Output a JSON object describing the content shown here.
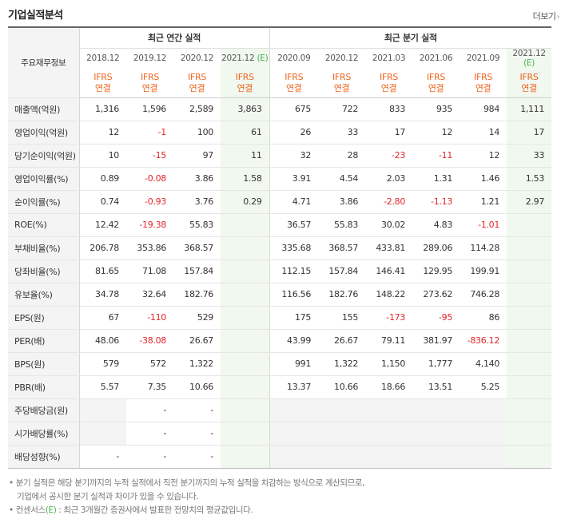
{
  "header": {
    "title": "기업실적분석",
    "more": "더보기",
    "more_arrow": "›"
  },
  "table": {
    "corner": "주요재무정보",
    "annual_group": "최근 연간 실적",
    "quarter_group": "최근 분기 실적",
    "periods": [
      {
        "label": "2018.12",
        "est": ""
      },
      {
        "label": "2019.12",
        "est": ""
      },
      {
        "label": "2020.12",
        "est": ""
      },
      {
        "label": "2021.12",
        "est": "(E)"
      },
      {
        "label": "2020.09",
        "est": ""
      },
      {
        "label": "2020.12",
        "est": ""
      },
      {
        "label": "2021.03",
        "est": ""
      },
      {
        "label": "2021.06",
        "est": ""
      },
      {
        "label": "2021.09",
        "est": ""
      },
      {
        "label": "2021.12",
        "est": "(E)"
      }
    ],
    "ifrs_line1": "IFRS",
    "ifrs_line2": "연결",
    "rows": [
      {
        "label": "매출액(억원)",
        "values": [
          "1,316",
          "1,596",
          "2,589",
          "3,863",
          "675",
          "722",
          "833",
          "935",
          "984",
          "1,111"
        ]
      },
      {
        "label": "영업이익(억원)",
        "values": [
          "12",
          "-1",
          "100",
          "61",
          "26",
          "33",
          "17",
          "12",
          "14",
          "17"
        ]
      },
      {
        "label": "당기순이익(억원)",
        "values": [
          "10",
          "-15",
          "97",
          "11",
          "32",
          "28",
          "-23",
          "-11",
          "12",
          "33"
        ]
      },
      {
        "label": "영업이익률(%)",
        "values": [
          "0.89",
          "-0.08",
          "3.86",
          "1.58",
          "3.91",
          "4.54",
          "2.03",
          "1.31",
          "1.46",
          "1.53"
        ]
      },
      {
        "label": "순이익률(%)",
        "values": [
          "0.74",
          "-0.93",
          "3.76",
          "0.29",
          "4.71",
          "3.86",
          "-2.80",
          "-1.13",
          "1.21",
          "2.97"
        ]
      },
      {
        "label": "ROE(%)",
        "values": [
          "12.42",
          "-19.38",
          "55.83",
          "",
          "36.57",
          "55.83",
          "30.02",
          "4.83",
          "-1.01",
          ""
        ]
      },
      {
        "label": "부채비율(%)",
        "values": [
          "206.78",
          "353.86",
          "368.57",
          "",
          "335.68",
          "368.57",
          "433.81",
          "289.06",
          "114.28",
          ""
        ]
      },
      {
        "label": "당좌비율(%)",
        "values": [
          "81.65",
          "71.08",
          "157.84",
          "",
          "112.15",
          "157.84",
          "146.41",
          "129.95",
          "199.91",
          ""
        ]
      },
      {
        "label": "유보율(%)",
        "values": [
          "34.78",
          "32.64",
          "182.76",
          "",
          "116.56",
          "182.76",
          "148.22",
          "273.62",
          "746.28",
          ""
        ]
      },
      {
        "label": "EPS(원)",
        "values": [
          "67",
          "-110",
          "529",
          "",
          "175",
          "155",
          "-173",
          "-95",
          "86",
          ""
        ]
      },
      {
        "label": "PER(배)",
        "values": [
          "48.06",
          "-38.08",
          "26.67",
          "",
          "43.99",
          "26.67",
          "79.11",
          "381.97",
          "-836.12",
          ""
        ]
      },
      {
        "label": "BPS(원)",
        "values": [
          "579",
          "572",
          "1,322",
          "",
          "991",
          "1,322",
          "1,150",
          "1,777",
          "4,140",
          ""
        ]
      },
      {
        "label": "PBR(배)",
        "values": [
          "5.57",
          "7.35",
          "10.66",
          "",
          "13.37",
          "10.66",
          "18.66",
          "13.51",
          "5.25",
          ""
        ]
      },
      {
        "label": "주당배당금(원)",
        "values": [
          "",
          "-",
          "-",
          "",
          "",
          "",
          "",
          "",
          "",
          ""
        ]
      },
      {
        "label": "시가배당률(%)",
        "values": [
          "",
          "-",
          "-",
          "",
          "",
          "",
          "",
          "",
          "",
          ""
        ]
      },
      {
        "label": "배당성향(%)",
        "values": [
          "-",
          "-",
          "-",
          "",
          "",
          "",
          "",
          "",
          "",
          ""
        ]
      }
    ]
  },
  "notes": {
    "line1": "• 분기 실적은 해당 분기까지의 누적 실적에서 직전 분기까지의 누적 실적을 차감하는 방식으로 계산되므로,",
    "line2": "기업에서 공시한 분기 실적과 차이가 있을 수 있습니다.",
    "line3_prefix": "• 컨센서스",
    "line3_mark": "(E)",
    "line3_suffix": " : 최근 3개월간 증권사에서 발표한 전망치의 평균값입니다."
  }
}
